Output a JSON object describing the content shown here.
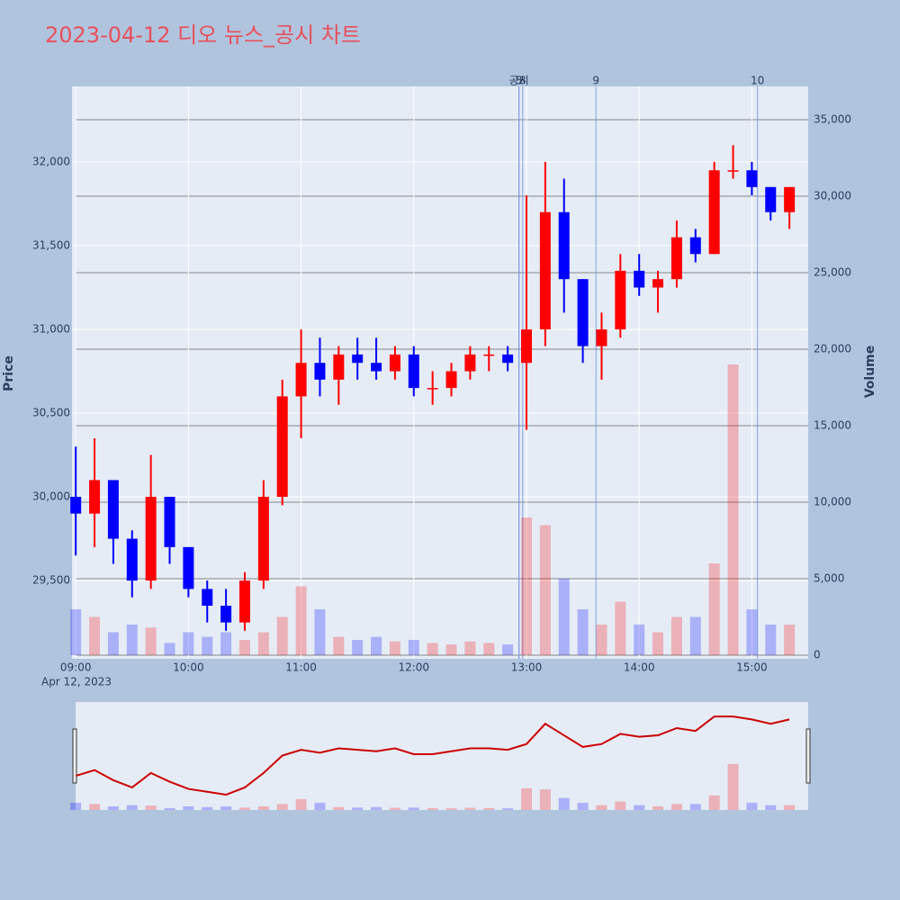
{
  "chart_data": {
    "type": "candlestick",
    "title": "2023-04-12 디오 뉴스_공시 차트",
    "y_title": "Price",
    "y2_title": "Volume",
    "x_sublabel": "Apr 12, 2023",
    "increasing_color": "#ff0000",
    "decreasing_color": "#0000ff",
    "x": [
      "09:00",
      "09:10",
      "09:20",
      "09:30",
      "09:40",
      "09:50",
      "10:00",
      "10:10",
      "10:20",
      "10:30",
      "10:40",
      "10:50",
      "11:00",
      "11:10",
      "11:20",
      "11:30",
      "11:40",
      "11:50",
      "12:00",
      "12:10",
      "12:20",
      "12:30",
      "12:40",
      "12:50",
      "13:00",
      "13:10",
      "13:20",
      "13:30",
      "13:40",
      "13:50",
      "14:00",
      "14:10",
      "14:20",
      "14:30",
      "14:40",
      "14:50",
      "15:00",
      "15:10",
      "15:20"
    ],
    "open": [
      30000,
      29900,
      30100,
      29750,
      29500,
      30000,
      29700,
      29450,
      29350,
      29250,
      29500,
      30000,
      30600,
      30800,
      30700,
      30850,
      30800,
      30750,
      30850,
      30650,
      30650,
      30750,
      30850,
      30850,
      30800,
      31000,
      31700,
      31300,
      30900,
      31000,
      31350,
      31250,
      31300,
      31550,
      31450,
      31950,
      31950,
      31850,
      31700
    ],
    "high": [
      30300,
      30350,
      30100,
      29800,
      30250,
      30000,
      29700,
      29500,
      29450,
      29550,
      30100,
      30700,
      31000,
      30950,
      30900,
      30950,
      30950,
      30900,
      30900,
      30750,
      30800,
      30900,
      30900,
      30900,
      31800,
      32000,
      31900,
      31300,
      31100,
      31450,
      31450,
      31350,
      31650,
      31600,
      32000,
      32100,
      32000,
      31850,
      31850
    ],
    "low": [
      29650,
      29700,
      29600,
      29400,
      29450,
      29600,
      29400,
      29250,
      29200,
      29200,
      29450,
      29950,
      30350,
      30600,
      30550,
      30700,
      30700,
      30700,
      30600,
      30550,
      30600,
      30700,
      30750,
      30750,
      30400,
      30900,
      31100,
      30800,
      30700,
      30950,
      31200,
      31100,
      31250,
      31400,
      31450,
      31900,
      31800,
      31650,
      31600
    ],
    "close": [
      29900,
      30100,
      29750,
      29500,
      30000,
      29700,
      29450,
      29350,
      29250,
      29500,
      30000,
      30600,
      30800,
      30700,
      30850,
      30800,
      30750,
      30850,
      30650,
      30650,
      30750,
      30850,
      30850,
      30800,
      31000,
      31700,
      31300,
      30900,
      31000,
      31350,
      31250,
      31300,
      31550,
      31450,
      31950,
      31950,
      31850,
      31700,
      31850
    ],
    "volume": [
      3000,
      2500,
      1500,
      2000,
      1800,
      800,
      1500,
      1200,
      1500,
      1000,
      1500,
      2500,
      4500,
      3000,
      1200,
      1000,
      1200,
      900,
      1000,
      800,
      700,
      900,
      800,
      700,
      9000,
      8500,
      5000,
      3000,
      2000,
      3500,
      2000,
      1500,
      2500,
      2500,
      6000,
      19000,
      3000,
      2000,
      2000
    ],
    "xlim": [
      "08:58",
      "15:30"
    ],
    "xticks": [
      "09:00",
      "10:00",
      "11:00",
      "12:00",
      "13:00",
      "14:00",
      "15:00"
    ],
    "ylim": [
      29033,
      32451
    ],
    "yticks": [
      {
        "value": 29500,
        "label": "29,500"
      },
      {
        "value": 30000,
        "label": "30,000"
      },
      {
        "value": 30500,
        "label": "30,500"
      },
      {
        "value": 31000,
        "label": "31,000"
      },
      {
        "value": 31500,
        "label": "31,500"
      },
      {
        "value": 32000,
        "label": "32,000"
      }
    ],
    "y2lim": [
      0,
      37180
    ],
    "y2ticks": [
      0,
      {
        "value": 5000,
        "label": "5,000"
      },
      {
        "value": 10000,
        "label": "10,000"
      },
      {
        "value": 15000,
        "label": "15,000"
      },
      {
        "value": 20000,
        "label": "20,000"
      },
      {
        "value": 25000,
        "label": "25,000"
      },
      {
        "value": 30000,
        "label": "30,000"
      },
      {
        "value": 35000,
        "label": "35,000"
      }
    ],
    "annotations": [
      {
        "x": "12:56",
        "label": "공시"
      },
      {
        "x": "12:56",
        "label": "5"
      },
      {
        "x": "12:58",
        "label": "8"
      },
      {
        "x": "13:37",
        "label": "9"
      },
      {
        "x": "15:03",
        "label": "10"
      }
    ]
  }
}
